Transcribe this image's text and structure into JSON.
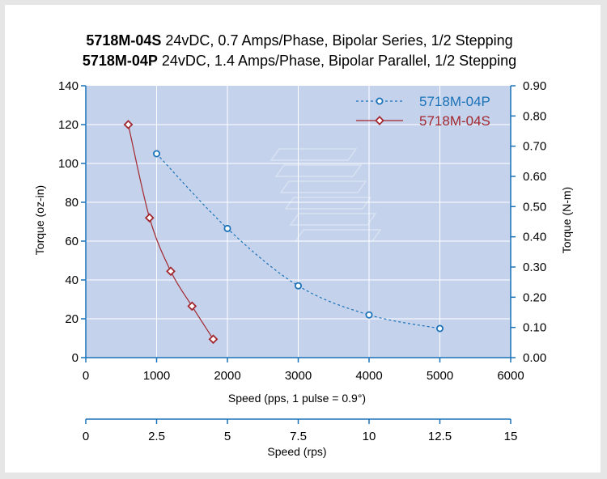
{
  "chart_data": {
    "type": "line",
    "title_line1_bold": "5718M-04S",
    "title_line1_rest": " 24vDC, 0.7 Amps/Phase, Bipolar Series, 1/2 Stepping",
    "title_line2_bold": "5718M-04P",
    "title_line2_rest": " 24vDC, 1.4 Amps/Phase, Bipolar Parallel, 1/2 Stepping",
    "xlabel": "Speed (pps, 1 pulse = 0.9°)",
    "x2label": "Speed (rps)",
    "ylabel": "Torque (oz-in)",
    "y2label": "Torque (N-m)",
    "xlim": [
      0,
      6000
    ],
    "ylim": [
      0,
      140
    ],
    "y2lim": [
      0,
      0.9
    ],
    "x2lim": [
      0,
      15
    ],
    "xticks": [
      "0",
      "1000",
      "2000",
      "3000",
      "4000",
      "5000",
      "6000"
    ],
    "yticks": [
      "0",
      "20",
      "40",
      "60",
      "80",
      "100",
      "120",
      "140"
    ],
    "y2ticks": [
      "0.00",
      "0.10",
      "0.20",
      "0.30",
      "0.40",
      "0.50",
      "0.60",
      "0.70",
      "0.80",
      "0.90"
    ],
    "x2ticks": [
      "0",
      "2.5",
      "5",
      "7.5",
      "10",
      "12.5",
      "15"
    ],
    "grid": true,
    "legend_position": "top-right",
    "series": [
      {
        "name": "5718M-04P",
        "color": "#1a72b8",
        "style": "dashed",
        "marker": "circle",
        "x": [
          1000,
          2000,
          3000,
          4000,
          5000
        ],
        "y": [
          105,
          66.5,
          37,
          22,
          15
        ]
      },
      {
        "name": "5718M-04S",
        "color": "#a3272e",
        "style": "solid",
        "marker": "diamond",
        "x": [
          600,
          900,
          1200,
          1500,
          1800
        ],
        "y": [
          120,
          72,
          44.5,
          26.5,
          9.5
        ]
      }
    ],
    "colors": {
      "plot_bg": "#c4d2ec",
      "axis": "#1a72b8",
      "grid": "#ffffff"
    }
  }
}
